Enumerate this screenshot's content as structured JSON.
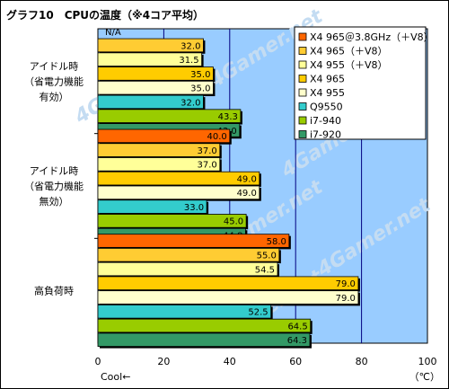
{
  "chart_data": {
    "type": "bar",
    "orientation": "horizontal",
    "title": "グラフ10　CPUの温度（※4コア平均）",
    "categories": [
      "アイドル時\n（省電力機能\n有効）",
      "アイドル時\n（省電力機能\n無効）",
      "高負荷時"
    ],
    "series": [
      {
        "name": "X4 965＠3.8GHz（＋V8）",
        "color": "#ff6600",
        "values": [
          null,
          40.0,
          58.0
        ],
        "labels": [
          "N/A",
          "40.0",
          "58.0"
        ]
      },
      {
        "name": "X4 965（＋V8）",
        "color": "#ffcc33",
        "values": [
          32.0,
          37.0,
          55.0
        ],
        "labels": [
          "32.0",
          "37.0",
          "55.0"
        ]
      },
      {
        "name": "X4 955（＋V8）",
        "color": "#ffff99",
        "values": [
          31.5,
          37.0,
          54.5
        ],
        "labels": [
          "31.5",
          "37.0",
          "54.5"
        ]
      },
      {
        "name": "X4 965",
        "color": "#ffcc00",
        "values": [
          35.0,
          49.0,
          79.0
        ],
        "labels": [
          "35.0",
          "49.0",
          "79.0"
        ]
      },
      {
        "name": "X4 955",
        "color": "#ffffcc",
        "values": [
          35.0,
          49.0,
          79.0
        ],
        "labels": [
          "35.0",
          "49.0",
          "79.0"
        ]
      },
      {
        "name": "Q9550",
        "color": "#33cccc",
        "values": [
          32.0,
          33.0,
          52.5
        ],
        "labels": [
          "32.0",
          "33.0",
          "52.5"
        ]
      },
      {
        "name": "i7-940",
        "color": "#99cc00",
        "values": [
          43.3,
          45.0,
          64.5
        ],
        "labels": [
          "43.3",
          "45.0",
          "64.5"
        ]
      },
      {
        "name": "i7-920",
        "color": "#339966",
        "values": [
          43.0,
          44.8,
          64.3
        ],
        "labels": [
          "43.0",
          "44.8",
          "64.3"
        ]
      }
    ],
    "xlim": [
      0,
      100
    ],
    "xticks": [
      0,
      20,
      40,
      60,
      80,
      100
    ],
    "xlabel_left": "Cool←",
    "xunit": "（℃）",
    "grid": true,
    "legend_position": "top-right",
    "watermark": "4Gamer.net",
    "colors": {
      "plot_background": "#99ccff",
      "gridline": "#000080"
    }
  }
}
